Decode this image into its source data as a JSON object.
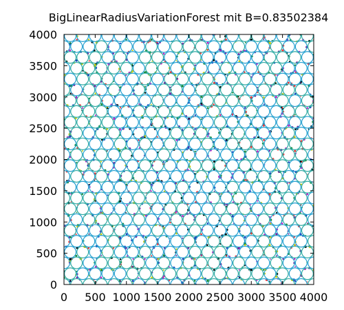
{
  "chart_data": {
    "type": "scatter",
    "title": "BigLinearRadiusVariationForest mit B=0.83502384",
    "xlabel": "",
    "ylabel": "",
    "xlim": [
      0,
      4000
    ],
    "ylim": [
      0,
      4000
    ],
    "x_ticks": [
      "0",
      "500",
      "1000",
      "1500",
      "2000",
      "2500",
      "3000",
      "3500",
      "4000"
    ],
    "y_ticks": [
      "0",
      "500",
      "1000",
      "1500",
      "2000",
      "2500",
      "3000",
      "3500",
      "4000"
    ],
    "grid": false,
    "legend": "none",
    "lattice": {
      "pattern": "hexagonal circle packing",
      "row_spacing": 173,
      "column_spacing": 200,
      "circle_radius": 100,
      "rows": 24,
      "columns": 21
    },
    "colors": {
      "circle_outline": "#1f9ecf",
      "circle_outline_alt": "#2ca9a2",
      "gap_speckle": [
        "#d7d000",
        "#7a1fa0",
        "#c81fc8",
        "#1a8a2e",
        "#1f3fbf",
        "#000000",
        "#ff3030"
      ]
    }
  }
}
